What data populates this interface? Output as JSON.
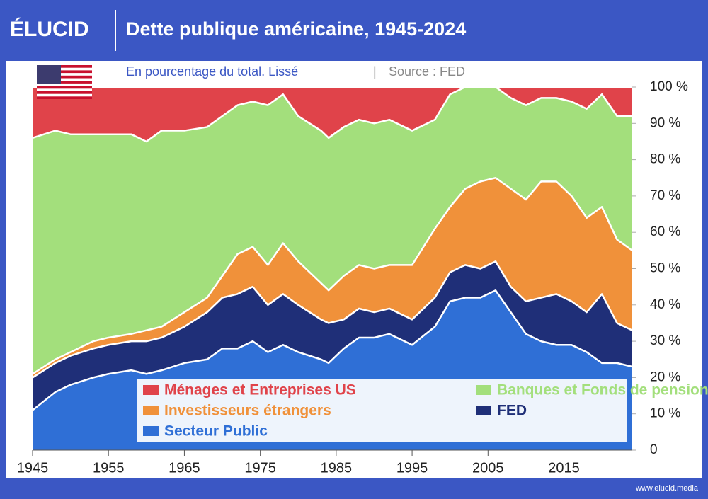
{
  "brand": "ÉLUCID",
  "footer": "www.elucid.media",
  "chart_data": {
    "type": "stacked-area",
    "title": "Dette publique américaine, 1945-2024",
    "subtitle": "En pourcentage du total. Lissé",
    "source": "Source : FED",
    "x": [
      1945,
      1948,
      1950,
      1953,
      1955,
      1958,
      1960,
      1962,
      1965,
      1968,
      1970,
      1972,
      1974,
      1976,
      1978,
      1980,
      1983,
      1984,
      1986,
      1988,
      1990,
      1992,
      1995,
      1998,
      2000,
      2002,
      2004,
      2006,
      2008,
      2010,
      2012,
      2014,
      2016,
      2018,
      2020,
      2022,
      2024
    ],
    "series": [
      {
        "name": "Secteur Public",
        "color": "#2f6fd6",
        "values": [
          11,
          16,
          18,
          20,
          21,
          22,
          21,
          22,
          24,
          25,
          28,
          28,
          30,
          27,
          29,
          27,
          25,
          24,
          28,
          31,
          31,
          32,
          29,
          34,
          41,
          42,
          42,
          44,
          38,
          32,
          30,
          29,
          29,
          27,
          24,
          24,
          23
        ]
      },
      {
        "name": "FED",
        "color": "#1f2f78",
        "values": [
          9,
          8,
          8,
          8,
          8,
          8,
          9,
          9,
          10,
          13,
          14,
          15,
          15,
          13,
          14,
          13,
          11,
          11,
          8,
          8,
          7,
          7,
          7,
          8,
          8,
          9,
          8,
          8,
          7,
          9,
          12,
          14,
          12,
          11,
          19,
          11,
          10
        ]
      },
      {
        "name": "Investisseurs étrangers",
        "color": "#f0913a",
        "values": [
          1,
          1,
          1,
          2,
          2,
          2,
          3,
          3,
          4,
          4,
          6,
          11,
          11,
          11,
          14,
          12,
          10,
          9,
          12,
          12,
          12,
          12,
          15,
          19,
          18,
          21,
          24,
          23,
          27,
          28,
          32,
          31,
          29,
          26,
          24,
          23,
          22
        ]
      },
      {
        "name": "Banques et Fonds de pension US",
        "color": "#a3df7c",
        "values": [
          65,
          63,
          60,
          57,
          56,
          55,
          52,
          54,
          50,
          47,
          44,
          41,
          40,
          44,
          41,
          40,
          42,
          42,
          41,
          40,
          40,
          40,
          37,
          30,
          31,
          28,
          26,
          25,
          25,
          26,
          23,
          23,
          26,
          30,
          31,
          34,
          37
        ]
      },
      {
        "name": "Ménages et Entreprises US",
        "color": "#e0434a",
        "values": [
          14,
          12,
          13,
          13,
          13,
          13,
          15,
          12,
          12,
          11,
          8,
          5,
          4,
          5,
          2,
          8,
          12,
          14,
          11,
          9,
          10,
          9,
          12,
          9,
          2,
          0,
          0,
          0,
          3,
          5,
          3,
          3,
          4,
          6,
          2,
          8,
          8
        ]
      }
    ],
    "xlim": [
      1945,
      2024
    ],
    "xticks": [
      1945,
      1955,
      1965,
      1975,
      1985,
      1995,
      2005,
      2015
    ],
    "ylim": [
      0,
      100
    ],
    "yticks": [
      0,
      {
        "value": 10,
        "label": "10 %"
      },
      {
        "value": 20,
        "label": "20 %"
      },
      {
        "value": 30,
        "label": "30 %"
      },
      {
        "value": 40,
        "label": "40 %"
      },
      {
        "value": 50,
        "label": "50 %"
      },
      {
        "value": 60,
        "label": "60 %"
      },
      {
        "value": 70,
        "label": "70 %"
      },
      {
        "value": 80,
        "label": "80 %"
      },
      {
        "value": 90,
        "label": "90 %"
      },
      {
        "value": {
          "value": 100,
          "label": "100 %"
        },
        "label": "100 %"
      }
    ]
  }
}
